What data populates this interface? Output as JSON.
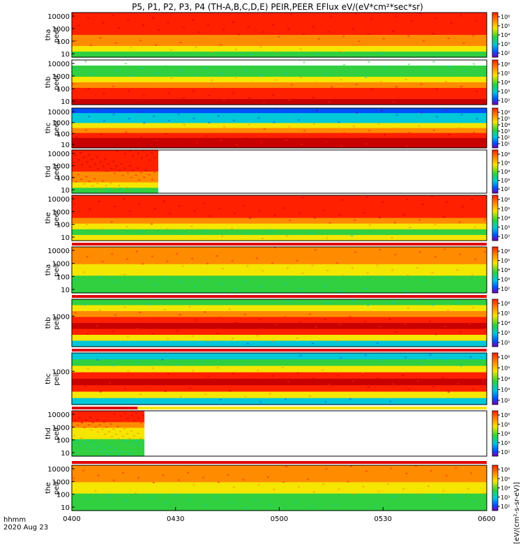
{
  "chart_data": {
    "type": "heatmap",
    "title": "P5, P1, P2, P3, P4 (TH-A,B,C,D,E) PEIR,PEER EFlux eV/(eV*cm²*sec*sr)",
    "xlabel": "hhmm",
    "date_label": "2020 Aug 23",
    "x_ticks": [
      "0400",
      "0430",
      "0500",
      "0530",
      "0600"
    ],
    "x_range": [
      "04:00",
      "06:00"
    ],
    "colorbar_label": "[eV/(cm²-s-sr-eV)]",
    "colors": {
      "deep_red": "#c80000",
      "red": "#ff2000",
      "orange": "#ff8c00",
      "yellow": "#f5e600",
      "green": "#30d040",
      "cyan": "#00c8d8",
      "blue": "#0050ff",
      "purple": "#7a00b0"
    },
    "panels": [
      {
        "name": "thа peer",
        "probe": "tha",
        "product": "peer",
        "ylabel_top": "tha",
        "ylabel_bottom": "peer",
        "y_ticks": [
          "10000",
          "1000",
          "100",
          "10"
        ],
        "data_end": "06:00",
        "bands": [
          "red",
          "red",
          "red",
          "red",
          "orange",
          "orange",
          "yellow",
          "green"
        ],
        "cb_ticks": [
          "10⁶",
          "10⁵",
          "10⁴",
          "10³",
          "10²"
        ]
      },
      {
        "name": "thb peer",
        "probe": "thb",
        "product": "peer",
        "ylabel_top": "thb",
        "ylabel_bottom": "peer",
        "y_ticks": [
          "10000",
          "1000",
          "100",
          "10"
        ],
        "data_end": "06:00",
        "bands": [
          "white",
          "green",
          "green",
          "yellow",
          "orange",
          "red",
          "red",
          "deep_red"
        ],
        "cb_ticks": [
          "10⁶",
          "10⁵",
          "10⁴",
          "10³",
          "10²"
        ]
      },
      {
        "name": "thc peer",
        "probe": "thc",
        "product": "peer",
        "ylabel_top": "thc",
        "ylabel_bottom": "peer",
        "y_ticks": [
          "10000",
          "1000",
          "100",
          "10"
        ],
        "data_end": "06:00",
        "bands": [
          "blue",
          "cyan",
          "cyan",
          "yellow",
          "orange",
          "red",
          "deep_red",
          "deep_red"
        ],
        "cb_ticks": [
          "10⁶",
          "10⁵",
          "10⁴",
          "10³",
          "10²",
          "10¹"
        ]
      },
      {
        "name": "thd peer",
        "probe": "thd",
        "product": "peer",
        "ylabel_top": "thd",
        "ylabel_bottom": "peer",
        "y_ticks": [
          "10000",
          "1000",
          "100",
          "10"
        ],
        "data_end": "04:25",
        "bands": [
          "red",
          "red",
          "red",
          "red",
          "orange",
          "orange",
          "yellow",
          "green"
        ],
        "cb_ticks": [
          "10⁶",
          "10⁵",
          "10⁴",
          "10³",
          "10²"
        ]
      },
      {
        "name": "the peer",
        "probe": "the",
        "product": "peer",
        "ylabel_top": "the",
        "ylabel_bottom": "peer",
        "y_ticks": [
          "10000",
          "1000",
          "100",
          "10"
        ],
        "data_end": "06:00",
        "bands": [
          "red",
          "red",
          "red",
          "red",
          "orange",
          "yellow",
          "green",
          "yellow"
        ],
        "cb_ticks": [
          "10⁶",
          "10⁵",
          "10⁴",
          "10³",
          "10²"
        ]
      },
      {
        "name": "tha peir",
        "probe": "tha",
        "product": "peir",
        "ylabel_top": "tha",
        "ylabel_bottom": "peir",
        "y_ticks": [
          "10000",
          "1000",
          "100",
          "10"
        ],
        "data_end": "06:00",
        "bands": [
          "orange",
          "orange",
          "orange",
          "yellow",
          "yellow",
          "green",
          "green",
          "green"
        ],
        "cb_ticks": [
          "10⁶",
          "10⁵",
          "10⁴",
          "10³",
          "10²"
        ]
      },
      {
        "name": "thb peir",
        "probe": "thb",
        "product": "peir",
        "ylabel_top": "thb",
        "ylabel_bottom": "peir",
        "y_ticks": [
          "1000"
        ],
        "data_end": "06:00",
        "bands": [
          "green",
          "yellow",
          "orange",
          "red",
          "deep_red",
          "red",
          "yellow",
          "cyan"
        ],
        "cb_ticks": [
          "10⁶",
          "10⁵",
          "10⁴",
          "10³",
          "10²"
        ]
      },
      {
        "name": "thc peir",
        "probe": "thc",
        "product": "peir",
        "ylabel_top": "thc",
        "ylabel_bottom": "peir",
        "y_ticks": [
          "1000"
        ],
        "data_end": "06:00",
        "bands": [
          "cyan",
          "green",
          "yellow",
          "red",
          "deep_red",
          "red",
          "yellow",
          "cyan"
        ],
        "cb_ticks": [
          "10⁶",
          "10⁵",
          "10⁴",
          "10³",
          "10²"
        ]
      },
      {
        "name": "thd peir",
        "probe": "thd",
        "product": "peir",
        "ylabel_top": "thd",
        "ylabel_bottom": "peir",
        "y_ticks": [
          "10000",
          "1000",
          "100",
          "10"
        ],
        "data_end": "04:21",
        "bands": [
          "red",
          "red",
          "orange",
          "yellow",
          "yellow",
          "green",
          "green",
          "green"
        ],
        "cb_ticks": [
          "10⁶",
          "10⁵",
          "10⁴",
          "10³",
          "10²"
        ]
      },
      {
        "name": "the peir",
        "probe": "the",
        "product": "peir",
        "ylabel_top": "the",
        "ylabel_bottom": "peir",
        "y_ticks": [
          "10000",
          "1000",
          "100",
          "10"
        ],
        "data_end": "06:00",
        "bands": [
          "orange",
          "orange",
          "orange",
          "yellow",
          "yellow",
          "green",
          "green",
          "green"
        ],
        "cb_ticks": [
          "10⁶",
          "10⁵",
          "10⁴",
          "10³",
          "10²"
        ]
      }
    ]
  }
}
